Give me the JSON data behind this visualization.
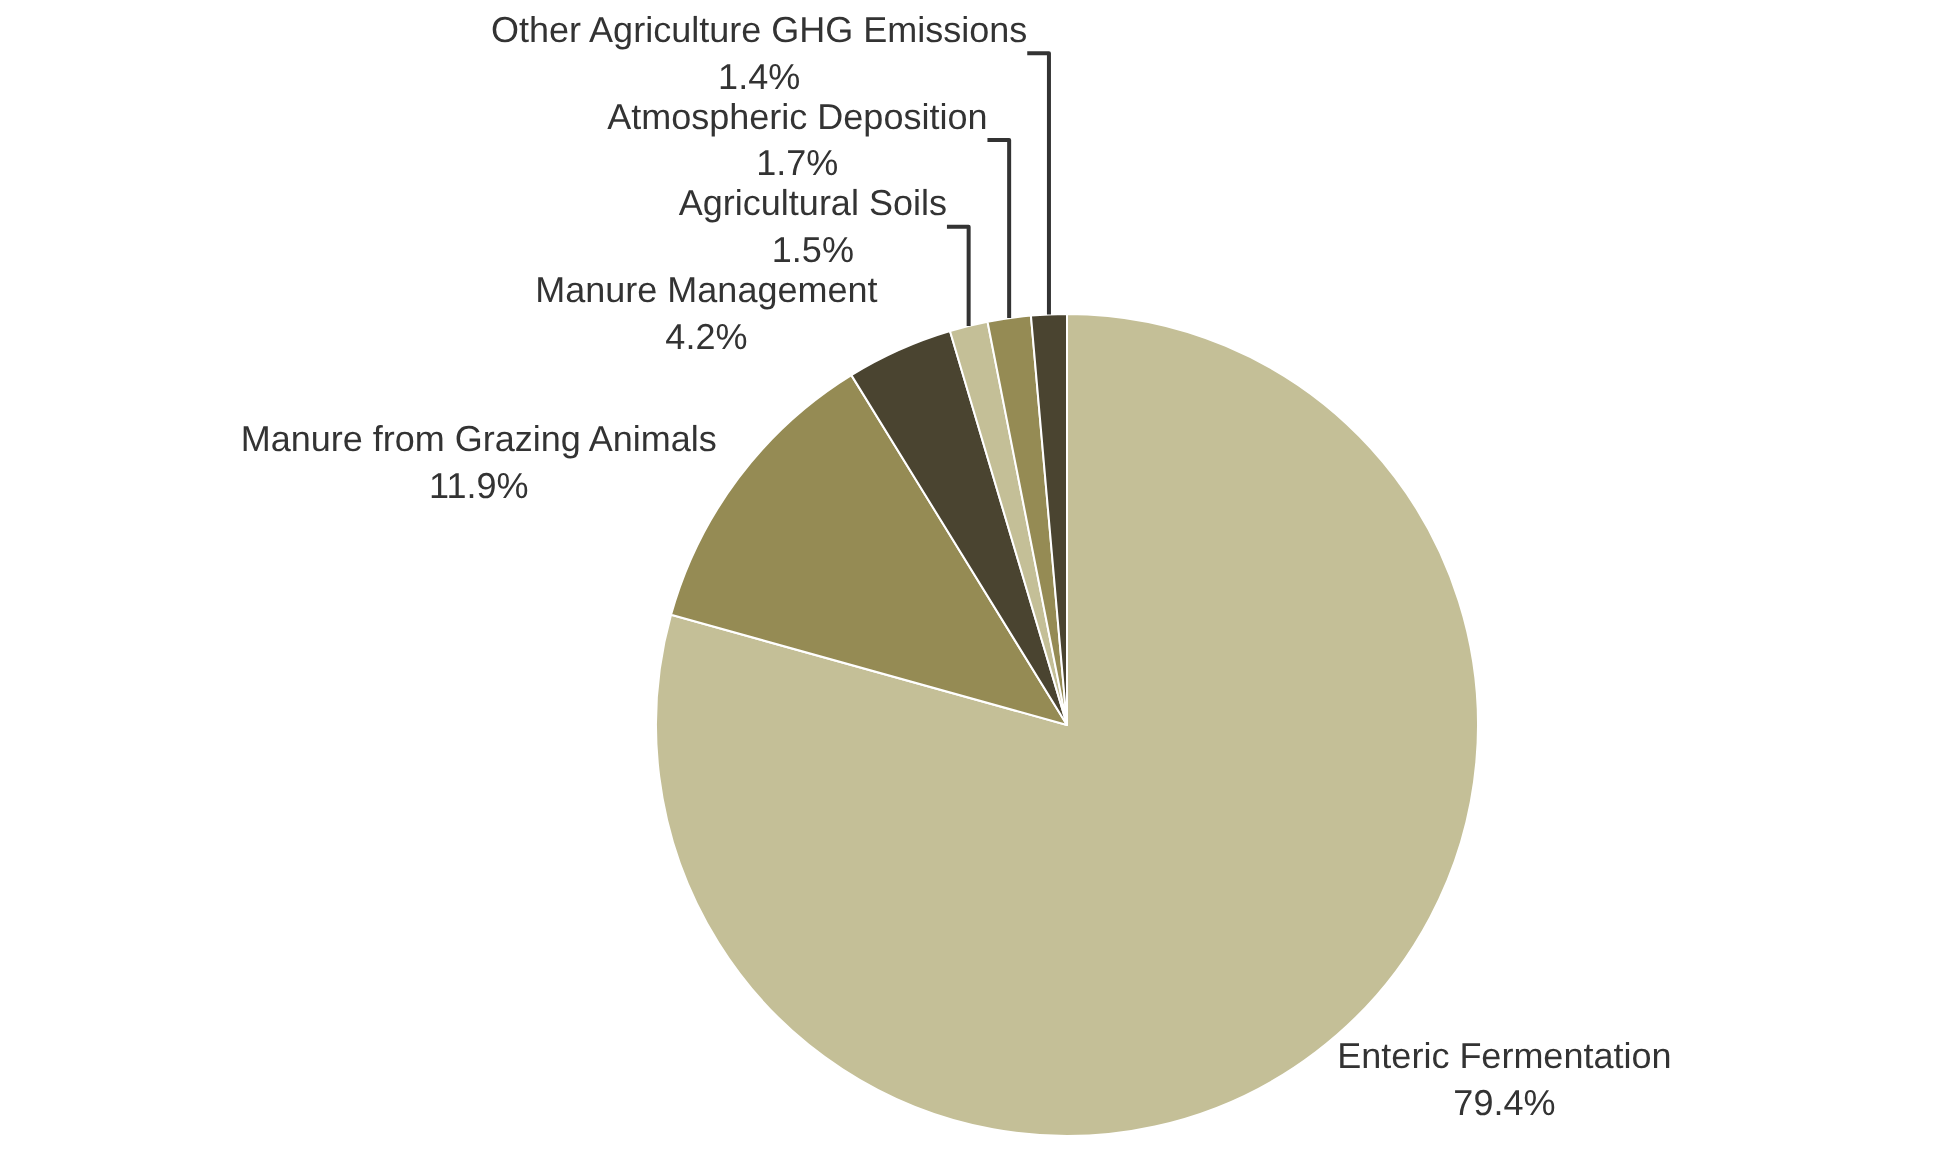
{
  "chart_data": {
    "type": "pie",
    "categories": [
      "Enteric Fermentation",
      "Manure from Grazing Animals",
      "Manure Management",
      "Agricultural Soils",
      "Atmospheric Deposition",
      "Other Agriculture GHG Emissions"
    ],
    "values": [
      79.4,
      11.9,
      4.2,
      1.5,
      1.7,
      1.4
    ],
    "colors": [
      "#c4bf97",
      "#958b54",
      "#4a4430",
      "#c4bf97",
      "#958b54",
      "#4a4430"
    ],
    "value_labels": [
      "79.4%",
      "11.9%",
      "4.2%",
      "1.5%",
      "1.7%",
      "1.4%"
    ],
    "legend": false
  }
}
